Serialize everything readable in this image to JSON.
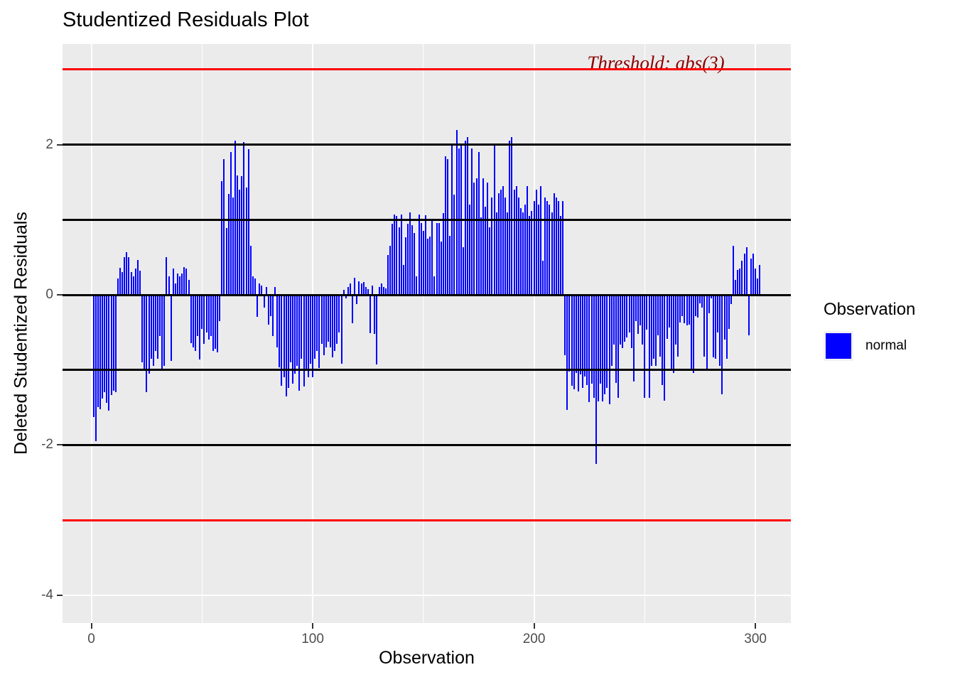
{
  "title": "Studentized Residuals Plot",
  "axes": {
    "x_title": "Observation",
    "y_title": "Deleted Studentized Residuals",
    "x_ticks": [
      0,
      100,
      200,
      300
    ],
    "y_ticks": [
      2,
      0,
      -2,
      -4
    ]
  },
  "annotation": {
    "text": "Threshold: abs(3)",
    "color": "#8B0000",
    "at_y": 3
  },
  "legend": {
    "title": "Observation",
    "items": [
      {
        "label": "normal",
        "color": "#0000FF"
      }
    ]
  },
  "colors": {
    "bar": "#0000FF",
    "reference_line": "#000000",
    "threshold_line": "#FF0000",
    "panel_bg": "#EBEBEB",
    "grid": "#FFFFFF",
    "tick_text": "#4D4D4D"
  },
  "chart_data": {
    "type": "bar",
    "title": "Studentized Residuals Plot",
    "xlabel": "Observation",
    "ylabel": "Deleted Studentized Residuals",
    "legend_position": "right",
    "grid": true,
    "x_axis_ticks": [
      0,
      100,
      200,
      300
    ],
    "x_minor_ticks": [
      50,
      150,
      250
    ],
    "y_axis_ticks": [
      2,
      0,
      -2,
      -4
    ],
    "y_minor_ticks": [
      3,
      1,
      -1,
      -3
    ],
    "xlim": [
      -13,
      316
    ],
    "ylim": [
      -4.37,
      3.34
    ],
    "reference_lines_black": [
      -2,
      -1,
      0,
      1,
      2
    ],
    "threshold_lines_red": [
      -3,
      3
    ],
    "series": [
      {
        "name": "normal",
        "color": "#0000FF"
      }
    ],
    "x_start": 1,
    "x_step": 1,
    "values": [
      -1.63,
      -1.95,
      -1.49,
      -1.52,
      -1.38,
      -1.3,
      -1.44,
      -1.54,
      -1.33,
      -1.28,
      -1.3,
      0.22,
      0.36,
      0.3,
      0.5,
      0.57,
      0.5,
      0.3,
      0.25,
      0.35,
      0.46,
      0.32,
      -0.9,
      -1.0,
      -1.3,
      -1.05,
      -0.85,
      -0.95,
      -0.75,
      -0.85,
      -0.55,
      -1.0,
      -0.95,
      0.5,
      0.25,
      -0.88,
      0.35,
      0.15,
      0.28,
      0.25,
      0.28,
      0.37,
      0.35,
      0.2,
      -0.64,
      -0.7,
      -0.75,
      -0.55,
      -0.86,
      -0.45,
      -0.65,
      -0.5,
      -0.6,
      -0.55,
      -0.75,
      -0.72,
      -0.77,
      -0.35,
      1.51,
      1.81,
      0.89,
      1.34,
      1.9,
      1.3,
      2.05,
      1.59,
      1.4,
      1.58,
      2.03,
      1.43,
      1.94,
      0.65,
      0.25,
      0.22,
      -0.29,
      0.15,
      0.12,
      -0.17,
      0.1,
      -0.4,
      -0.28,
      -0.55,
      0.1,
      -0.7,
      -0.96,
      -1.21,
      -1.1,
      -1.35,
      -1.24,
      -0.9,
      -1.18,
      -1.05,
      -0.95,
      -1.28,
      -0.85,
      -1.22,
      -1.0,
      -1.1,
      -0.92,
      -1.1,
      -0.85,
      -0.75,
      -0.97,
      -0.65,
      -0.8,
      -0.7,
      -0.62,
      -0.7,
      -0.83,
      -0.75,
      -0.65,
      -0.5,
      -0.92,
      0.07,
      -0.05,
      0.1,
      0.15,
      -0.38,
      0.23,
      -0.12,
      0.18,
      0.15,
      0.17,
      0.1,
      0.08,
      -0.51,
      0.12,
      -0.52,
      -0.93,
      0.1,
      0.15,
      0.1,
      0.09,
      0.53,
      0.65,
      0.95,
      1.07,
      1.05,
      0.9,
      1.07,
      0.4,
      0.77,
      0.95,
      1.1,
      0.93,
      0.82,
      0.25,
      1.07,
      0.96,
      0.85,
      1.06,
      0.75,
      0.78,
      1.01,
      0.25,
      0.96,
      0.96,
      0.71,
      1.09,
      1.85,
      1.81,
      0.79,
      2.0,
      1.33,
      2.2,
      1.95,
      2.0,
      0.63,
      2.05,
      2.1,
      1.2,
      1.95,
      1.5,
      1.55,
      1.9,
      1.03,
      1.55,
      1.17,
      1.5,
      0.9,
      1.3,
      2.0,
      1.1,
      1.35,
      1.4,
      1.45,
      1.3,
      1.1,
      2.05,
      2.1,
      1.4,
      1.45,
      1.3,
      1.15,
      1.1,
      1.2,
      1.45,
      1.05,
      1.12,
      1.25,
      1.4,
      1.2,
      1.45,
      0.45,
      1.3,
      1.25,
      1.2,
      1.1,
      1.35,
      1.3,
      1.25,
      1.05,
      1.25,
      -0.8,
      -1.53,
      -1.02,
      -1.21,
      -1.26,
      -1.04,
      -1.29,
      -1.06,
      -1.24,
      -1.09,
      -1.2,
      -1.43,
      -1.18,
      -1.37,
      -2.25,
      -1.42,
      -1.18,
      -1.42,
      -1.32,
      -1.24,
      -1.46,
      -0.95,
      -0.66,
      -1.17,
      -1.37,
      -0.66,
      -0.71,
      -0.62,
      -0.57,
      -0.5,
      -0.71,
      -1.15,
      -0.35,
      -0.52,
      -0.41,
      -0.66,
      -1.37,
      -0.46,
      -1.37,
      -0.95,
      -0.85,
      -0.95,
      -0.54,
      -0.82,
      -1.2,
      -1.41,
      -0.59,
      -0.43,
      -0.98,
      -1.04,
      -0.66,
      -0.82,
      -0.37,
      -0.28,
      -0.38,
      -0.41,
      -0.4,
      -1.0,
      -1.04,
      -0.28,
      -0.3,
      -0.11,
      -0.17,
      -0.82,
      -0.98,
      -0.25,
      -0.05,
      -0.83,
      -0.85,
      -0.5,
      -0.95,
      -1.32,
      -0.6,
      -0.85,
      -0.45,
      -0.12,
      0.65,
      0.2,
      0.33,
      0.35,
      0.45,
      0.55,
      0.63,
      -0.54,
      0.48,
      0.55,
      0.35,
      0.22,
      0.4
    ]
  }
}
